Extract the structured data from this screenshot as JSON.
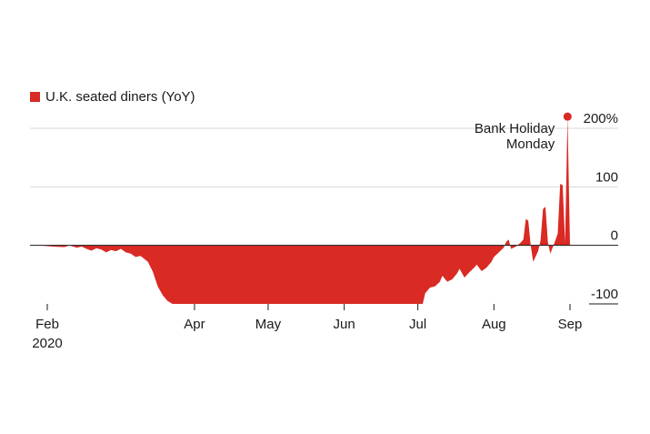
{
  "chart_data": {
    "type": "area",
    "legend": {
      "label": "U.K. seated diners (YoY)",
      "color": "#d92a24",
      "position": "top-left"
    },
    "xlim": [
      "2020-02-01",
      "2020-09-07"
    ],
    "ylim": [
      -100,
      200
    ],
    "yticks": [
      {
        "value": 200,
        "label": "200%"
      },
      {
        "value": 100,
        "label": "100"
      },
      {
        "value": 0,
        "label": "0"
      },
      {
        "value": -100,
        "label": "-100"
      }
    ],
    "xticks": [
      {
        "date": "2020-02-01",
        "label": "Feb",
        "sublabel": "2020"
      },
      {
        "date": "2020-04-01",
        "label": "Apr"
      },
      {
        "date": "2020-05-01",
        "label": "May"
      },
      {
        "date": "2020-06-01",
        "label": "Jun"
      },
      {
        "date": "2020-07-01",
        "label": "Jul"
      },
      {
        "date": "2020-08-01",
        "label": "Aug"
      },
      {
        "date": "2020-09-01",
        "label": "Sep"
      }
    ],
    "grid": true,
    "color": "#d92a24",
    "points": [
      [
        "2020-01-29",
        0
      ],
      [
        "2020-02-03",
        -2
      ],
      [
        "2020-02-08",
        -3
      ],
      [
        "2020-02-10",
        0
      ],
      [
        "2020-02-13",
        -4
      ],
      [
        "2020-02-15",
        -2
      ],
      [
        "2020-02-17",
        -6
      ],
      [
        "2020-02-19",
        -9
      ],
      [
        "2020-02-21",
        -5
      ],
      [
        "2020-02-23",
        -7
      ],
      [
        "2020-02-25",
        -12
      ],
      [
        "2020-02-27",
        -8
      ],
      [
        "2020-02-29",
        -10
      ],
      [
        "2020-03-02",
        -6
      ],
      [
        "2020-03-04",
        -12
      ],
      [
        "2020-03-06",
        -14
      ],
      [
        "2020-03-08",
        -20
      ],
      [
        "2020-03-10",
        -18
      ],
      [
        "2020-03-13",
        -28
      ],
      [
        "2020-03-15",
        -45
      ],
      [
        "2020-03-17",
        -70
      ],
      [
        "2020-03-19",
        -85
      ],
      [
        "2020-03-21",
        -95
      ],
      [
        "2020-03-23",
        -100
      ],
      [
        "2020-06-30",
        -100
      ],
      [
        "2020-07-03",
        -100
      ],
      [
        "2020-07-04",
        -82
      ],
      [
        "2020-07-06",
        -72
      ],
      [
        "2020-07-08",
        -70
      ],
      [
        "2020-07-10",
        -62
      ],
      [
        "2020-07-11",
        -52
      ],
      [
        "2020-07-13",
        -62
      ],
      [
        "2020-07-15",
        -58
      ],
      [
        "2020-07-17",
        -48
      ],
      [
        "2020-07-18",
        -40
      ],
      [
        "2020-07-20",
        -55
      ],
      [
        "2020-07-22",
        -46
      ],
      [
        "2020-07-24",
        -38
      ],
      [
        "2020-07-25",
        -33
      ],
      [
        "2020-07-27",
        -44
      ],
      [
        "2020-07-29",
        -38
      ],
      [
        "2020-07-31",
        -28
      ],
      [
        "2020-08-01",
        -20
      ],
      [
        "2020-08-03",
        -12
      ],
      [
        "2020-08-05",
        -4
      ],
      [
        "2020-08-06",
        6
      ],
      [
        "2020-08-07",
        10
      ],
      [
        "2020-08-08",
        -6
      ],
      [
        "2020-08-10",
        -2
      ],
      [
        "2020-08-12",
        5
      ],
      [
        "2020-08-13",
        10
      ],
      [
        "2020-08-14",
        45
      ],
      [
        "2020-08-15",
        42
      ],
      [
        "2020-08-16",
        0
      ],
      [
        "2020-08-17",
        -28
      ],
      [
        "2020-08-19",
        -10
      ],
      [
        "2020-08-20",
        8
      ],
      [
        "2020-08-21",
        62
      ],
      [
        "2020-08-22",
        66
      ],
      [
        "2020-08-23",
        5
      ],
      [
        "2020-08-24",
        -14
      ],
      [
        "2020-08-26",
        8
      ],
      [
        "2020-08-27",
        20
      ],
      [
        "2020-08-28",
        105
      ],
      [
        "2020-08-29",
        103
      ],
      [
        "2020-08-30",
        5
      ],
      [
        "2020-08-31",
        220
      ],
      [
        "2020-09-01",
        0
      ],
      [
        "2020-09-07",
        0
      ]
    ],
    "annotations": [
      {
        "date": "2020-08-31",
        "value": 220,
        "lines": [
          "Bank Holiday",
          "Monday"
        ]
      }
    ]
  }
}
